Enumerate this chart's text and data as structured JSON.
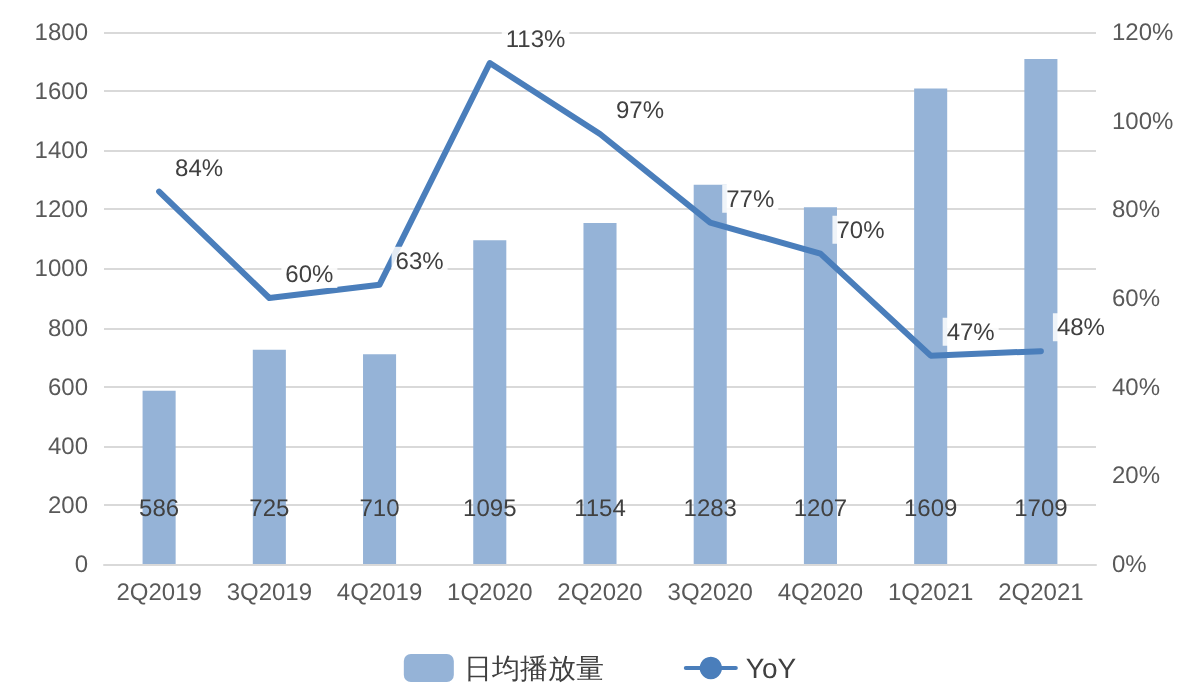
{
  "chart_data": {
    "type": "bar",
    "categories": [
      "2Q2019",
      "3Q2019",
      "4Q2019",
      "1Q2020",
      "2Q2020",
      "3Q2020",
      "4Q2020",
      "1Q2021",
      "2Q2021"
    ],
    "series": [
      {
        "name": "日均播放量",
        "color": "#95b3d7",
        "values": [
          586,
          725,
          710,
          1095,
          1154,
          1283,
          1207,
          1609,
          1709
        ],
        "value_labels": [
          "586",
          "725",
          "710",
          "1095",
          "1154",
          "1283",
          "1207",
          "1609",
          "1709"
        ]
      },
      {
        "name": "YoY",
        "type": "line",
        "axis": "y2",
        "color": "#4a7ebb",
        "values": [
          84,
          60,
          63,
          113,
          97,
          77,
          70,
          47,
          48
        ],
        "value_labels": [
          "84%",
          "60%",
          "63%",
          "113%",
          "97%",
          "77%",
          "70%",
          "47%",
          "48%"
        ]
      }
    ],
    "ylim": [
      0,
      1800
    ],
    "yticks": [
      0,
      200,
      400,
      600,
      800,
      1000,
      1200,
      1400,
      1600,
      1800
    ],
    "y2lim": [
      0,
      120
    ],
    "y2ticks": [
      {
        "value": 0,
        "label": "0%"
      },
      {
        "value": 20,
        "label": "20%"
      },
      {
        "value": 40,
        "label": "40%"
      },
      {
        "value": 60,
        "label": "60%"
      },
      {
        "value": 80,
        "label": "80%"
      },
      {
        "value": 100,
        "label": "100%"
      },
      {
        "value": 120,
        "label": "120%"
      }
    ],
    "grid": "y",
    "legend": "bottom",
    "marker": "none",
    "line_style": "solid"
  }
}
